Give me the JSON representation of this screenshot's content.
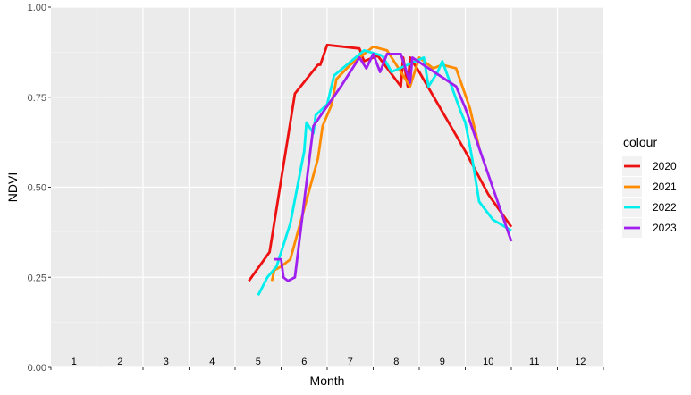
{
  "chart_data": {
    "type": "line",
    "xlabel": "Month",
    "ylabel": "NDVI",
    "xlim": [
      0,
      12
    ],
    "ylim": [
      0,
      1
    ],
    "y_ticks": [
      "0.00",
      "0.25",
      "0.50",
      "0.75",
      "1.00"
    ],
    "y_tick_values": [
      0,
      0.25,
      0.5,
      0.75,
      1.0
    ],
    "month_labels": [
      "1",
      "2",
      "3",
      "4",
      "5",
      "6",
      "7",
      "8",
      "9",
      "10",
      "11",
      "12"
    ],
    "grid": true,
    "legend": {
      "title": "colour",
      "position": "right"
    },
    "series": [
      {
        "name": "2020",
        "color": "#ee1111",
        "points": [
          [
            4.3,
            0.24
          ],
          [
            4.75,
            0.32
          ],
          [
            5.3,
            0.76
          ],
          [
            5.8,
            0.84
          ],
          [
            5.85,
            0.84
          ],
          [
            6.0,
            0.895
          ],
          [
            6.7,
            0.885
          ],
          [
            6.8,
            0.85
          ],
          [
            7.1,
            0.865
          ],
          [
            7.6,
            0.78
          ],
          [
            7.65,
            0.86
          ],
          [
            7.75,
            0.78
          ],
          [
            7.8,
            0.86
          ],
          [
            8.0,
            0.82
          ],
          [
            9.0,
            0.6
          ],
          [
            9.5,
            0.48
          ],
          [
            10.0,
            0.39
          ]
        ]
      },
      {
        "name": "2021",
        "color": "#ff8c00",
        "points": [
          [
            4.8,
            0.24
          ],
          [
            4.85,
            0.27
          ],
          [
            5.0,
            0.28
          ],
          [
            5.2,
            0.3
          ],
          [
            5.8,
            0.58
          ],
          [
            5.9,
            0.67
          ],
          [
            6.1,
            0.73
          ],
          [
            6.2,
            0.8
          ],
          [
            6.5,
            0.84
          ],
          [
            7.0,
            0.89
          ],
          [
            7.3,
            0.88
          ],
          [
            7.6,
            0.82
          ],
          [
            7.8,
            0.78
          ],
          [
            8.0,
            0.86
          ],
          [
            8.3,
            0.83
          ],
          [
            8.5,
            0.84
          ],
          [
            8.8,
            0.83
          ],
          [
            9.1,
            0.72
          ],
          [
            9.3,
            0.61
          ]
        ]
      },
      {
        "name": "2022",
        "color": "#00eeee",
        "points": [
          [
            4.5,
            0.2
          ],
          [
            4.7,
            0.25
          ],
          [
            4.9,
            0.28
          ],
          [
            5.2,
            0.4
          ],
          [
            5.5,
            0.6
          ],
          [
            5.55,
            0.68
          ],
          [
            5.7,
            0.65
          ],
          [
            5.75,
            0.7
          ],
          [
            6.0,
            0.73
          ],
          [
            6.15,
            0.81
          ],
          [
            6.8,
            0.88
          ],
          [
            7.2,
            0.865
          ],
          [
            7.4,
            0.82
          ],
          [
            8.1,
            0.86
          ],
          [
            8.2,
            0.78
          ],
          [
            8.4,
            0.82
          ],
          [
            8.5,
            0.85
          ],
          [
            8.9,
            0.71
          ],
          [
            9.0,
            0.68
          ],
          [
            9.15,
            0.58
          ],
          [
            9.3,
            0.46
          ],
          [
            9.6,
            0.41
          ],
          [
            10.0,
            0.38
          ]
        ]
      },
      {
        "name": "2023",
        "color": "#a020f0",
        "points": [
          [
            4.85,
            0.3
          ],
          [
            5.0,
            0.3
          ],
          [
            5.05,
            0.25
          ],
          [
            5.15,
            0.24
          ],
          [
            5.3,
            0.25
          ],
          [
            5.7,
            0.67
          ],
          [
            6.3,
            0.78
          ],
          [
            6.55,
            0.83
          ],
          [
            6.7,
            0.86
          ],
          [
            6.85,
            0.83
          ],
          [
            7.0,
            0.87
          ],
          [
            7.15,
            0.82
          ],
          [
            7.3,
            0.87
          ],
          [
            7.6,
            0.87
          ],
          [
            7.8,
            0.79
          ],
          [
            7.85,
            0.86
          ],
          [
            8.8,
            0.78
          ],
          [
            9.0,
            0.72
          ],
          [
            10.0,
            0.35
          ]
        ]
      }
    ]
  }
}
